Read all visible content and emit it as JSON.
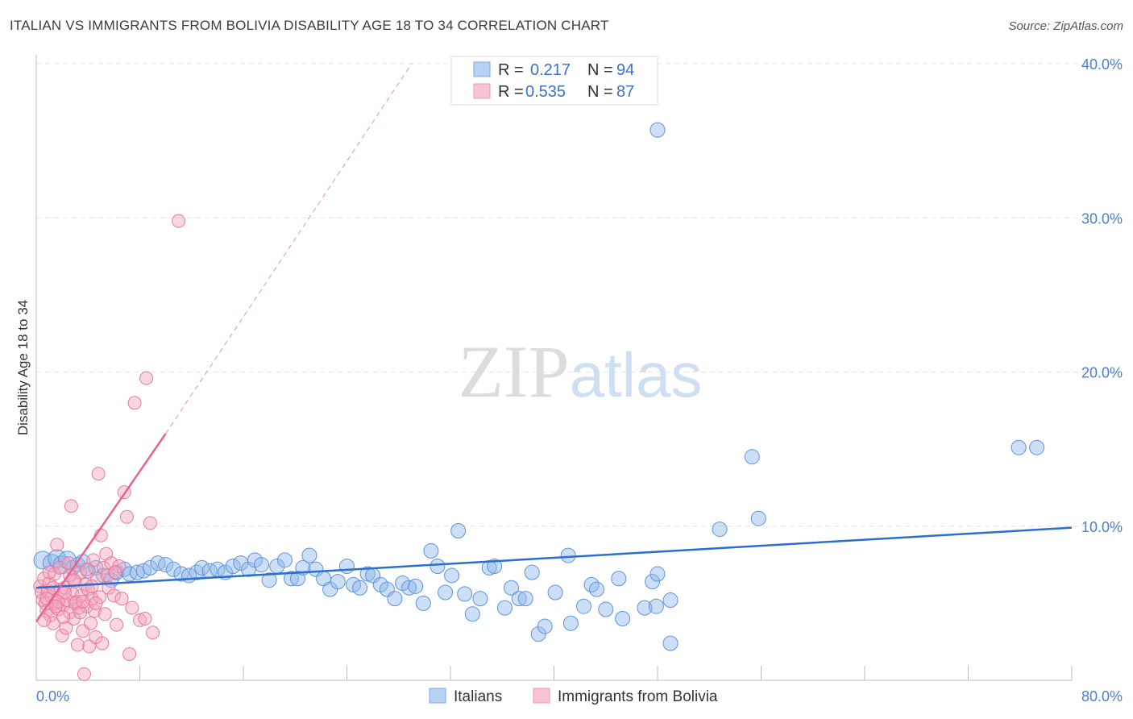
{
  "chart_data": {
    "type": "scatter",
    "title": "ITALIAN VS IMMIGRANTS FROM BOLIVIA DISABILITY AGE 18 TO 34 CORRELATION CHART",
    "source": "Source: ZipAtlas.com",
    "xlabel": "",
    "ylabel": "Disability Age 18 to 34",
    "xlim": [
      0,
      80
    ],
    "ylim": [
      0,
      40
    ],
    "x_tick_labels": [
      "0.0%",
      "80.0%"
    ],
    "y_ticks": [
      10,
      20,
      30,
      40
    ],
    "y_tick_labels": [
      "10.0%",
      "20.0%",
      "30.0%",
      "40.0%"
    ],
    "watermark": "ZIPatlas",
    "legend": [
      {
        "name": "Italians",
        "r_label": "R =",
        "r": "0.217",
        "n_label": "N =",
        "n": "94",
        "color": "#8fb8ec"
      },
      {
        "name": "Immigrants from Bolivia",
        "r_label": "R =",
        "r": "0.535",
        "n_label": "N =",
        "n": "87",
        "color": "#f4a3bd"
      }
    ],
    "series": [
      {
        "name": "Italians",
        "color": "#8fb8ec",
        "stroke": "#5f93dc",
        "trend": {
          "x": [
            0,
            80
          ],
          "y": [
            6.0,
            9.9
          ],
          "color": "#2a6fcf"
        },
        "points": [
          [
            0.5,
            7.8
          ],
          [
            1.2,
            7.6
          ],
          [
            1.6,
            7.9
          ],
          [
            2.0,
            7.5
          ],
          [
            2.4,
            7.8
          ],
          [
            2.8,
            7.3
          ],
          [
            3.2,
            7.5
          ],
          [
            3.6,
            7.7
          ],
          [
            4.0,
            7.1
          ],
          [
            4.6,
            7.3
          ],
          [
            5.2,
            6.8
          ],
          [
            5.8,
            6.5
          ],
          [
            6.2,
            7.0
          ],
          [
            6.8,
            7.2
          ],
          [
            7.2,
            6.9
          ],
          [
            7.8,
            7.0
          ],
          [
            8.3,
            7.1
          ],
          [
            8.8,
            7.3
          ],
          [
            9.4,
            7.6
          ],
          [
            10.0,
            7.5
          ],
          [
            10.6,
            7.2
          ],
          [
            11.2,
            6.9
          ],
          [
            11.8,
            6.8
          ],
          [
            12.4,
            7.0
          ],
          [
            12.8,
            7.3
          ],
          [
            13.4,
            7.1
          ],
          [
            14.0,
            7.2
          ],
          [
            14.6,
            7.0
          ],
          [
            15.2,
            7.4
          ],
          [
            15.8,
            7.6
          ],
          [
            16.4,
            7.2
          ],
          [
            16.9,
            7.8
          ],
          [
            17.4,
            7.5
          ],
          [
            18.0,
            6.5
          ],
          [
            18.6,
            7.4
          ],
          [
            19.2,
            7.8
          ],
          [
            19.7,
            6.6
          ],
          [
            20.2,
            6.6
          ],
          [
            20.6,
            7.3
          ],
          [
            21.1,
            8.1
          ],
          [
            21.6,
            7.2
          ],
          [
            22.2,
            6.6
          ],
          [
            22.7,
            5.9
          ],
          [
            23.3,
            6.4
          ],
          [
            24.0,
            7.4
          ],
          [
            24.5,
            6.2
          ],
          [
            25.0,
            6.0
          ],
          [
            25.6,
            6.9
          ],
          [
            26.0,
            6.8
          ],
          [
            26.6,
            6.2
          ],
          [
            27.1,
            5.9
          ],
          [
            27.7,
            5.3
          ],
          [
            28.3,
            6.3
          ],
          [
            28.8,
            6.0
          ],
          [
            29.3,
            6.1
          ],
          [
            29.9,
            5.0
          ],
          [
            30.5,
            8.4
          ],
          [
            31.0,
            7.4
          ],
          [
            31.6,
            5.7
          ],
          [
            32.1,
            6.8
          ],
          [
            32.6,
            9.7
          ],
          [
            33.1,
            5.6
          ],
          [
            33.7,
            4.3
          ],
          [
            34.3,
            5.3
          ],
          [
            35.0,
            7.3
          ],
          [
            35.4,
            7.4
          ],
          [
            36.2,
            4.7
          ],
          [
            36.7,
            6.0
          ],
          [
            37.3,
            5.3
          ],
          [
            37.8,
            5.3
          ],
          [
            38.3,
            7.0
          ],
          [
            38.8,
            3.0
          ],
          [
            39.3,
            3.5
          ],
          [
            40.1,
            5.7
          ],
          [
            41.1,
            8.1
          ],
          [
            41.3,
            3.7
          ],
          [
            42.3,
            4.8
          ],
          [
            42.9,
            6.2
          ],
          [
            43.3,
            5.9
          ],
          [
            44.0,
            4.6
          ],
          [
            45.0,
            6.6
          ],
          [
            45.3,
            4.0
          ],
          [
            47.0,
            4.7
          ],
          [
            47.6,
            6.4
          ],
          [
            47.9,
            4.8
          ],
          [
            48.0,
            6.9
          ],
          [
            49.0,
            5.2
          ],
          [
            49.0,
            2.4
          ],
          [
            48.0,
            35.7
          ],
          [
            52.8,
            9.8
          ],
          [
            55.8,
            10.5
          ],
          [
            55.3,
            14.5
          ],
          [
            75.9,
            15.1
          ],
          [
            77.3,
            15.1
          ]
        ]
      },
      {
        "name": "Immigrants from Bolivia",
        "color": "#f4a3bd",
        "stroke": "#e77a9e",
        "trend": {
          "x": [
            0,
            10
          ],
          "y": [
            3.8,
            16.0
          ],
          "color": "#e8638f"
        },
        "trend_ext": {
          "x": [
            10,
            29
          ],
          "y": [
            16.0,
            40.0
          ]
        },
        "points": [
          [
            0.3,
            6.1
          ],
          [
            0.4,
            5.7
          ],
          [
            0.5,
            5.2
          ],
          [
            0.6,
            6.6
          ],
          [
            0.7,
            5.0
          ],
          [
            0.8,
            4.5
          ],
          [
            0.9,
            5.8
          ],
          [
            1.0,
            6.3
          ],
          [
            1.1,
            4.2
          ],
          [
            1.2,
            5.4
          ],
          [
            1.3,
            3.7
          ],
          [
            1.4,
            6.9
          ],
          [
            1.5,
            5.0
          ],
          [
            1.6,
            8.8
          ],
          [
            1.7,
            4.6
          ],
          [
            1.8,
            7.3
          ],
          [
            1.9,
            5.9
          ],
          [
            2.0,
            2.9
          ],
          [
            2.1,
            4.9
          ],
          [
            2.2,
            6.0
          ],
          [
            2.3,
            3.4
          ],
          [
            2.4,
            5.2
          ],
          [
            2.5,
            7.6
          ],
          [
            2.6,
            4.4
          ],
          [
            2.7,
            11.3
          ],
          [
            2.8,
            5.6
          ],
          [
            2.9,
            4.0
          ],
          [
            3.0,
            6.4
          ],
          [
            3.1,
            5.1
          ],
          [
            3.2,
            2.3
          ],
          [
            3.3,
            4.7
          ],
          [
            3.4,
            7.0
          ],
          [
            3.5,
            5.5
          ],
          [
            3.6,
            3.2
          ],
          [
            3.7,
            0.4
          ],
          [
            3.8,
            6.2
          ],
          [
            3.9,
            4.8
          ],
          [
            4.0,
            5.9
          ],
          [
            4.1,
            2.2
          ],
          [
            4.2,
            3.7
          ],
          [
            4.3,
            5.3
          ],
          [
            4.4,
            7.8
          ],
          [
            4.5,
            4.5
          ],
          [
            4.6,
            2.8
          ],
          [
            4.7,
            6.6
          ],
          [
            4.8,
            13.4
          ],
          [
            4.9,
            5.4
          ],
          [
            5.0,
            9.4
          ],
          [
            5.1,
            2.4
          ],
          [
            5.2,
            7.3
          ],
          [
            5.3,
            4.3
          ],
          [
            5.4,
            8.2
          ],
          [
            5.6,
            6.0
          ],
          [
            5.8,
            7.6
          ],
          [
            6.0,
            5.5
          ],
          [
            6.2,
            3.6
          ],
          [
            6.4,
            7.4
          ],
          [
            6.6,
            5.3
          ],
          [
            6.8,
            12.2
          ],
          [
            7.0,
            10.6
          ],
          [
            7.2,
            1.7
          ],
          [
            7.4,
            4.7
          ],
          [
            7.6,
            18.0
          ],
          [
            8.0,
            3.9
          ],
          [
            8.5,
            19.6
          ],
          [
            8.4,
            4.0
          ],
          [
            8.8,
            10.2
          ],
          [
            9.0,
            3.1
          ],
          [
            11.0,
            29.8
          ],
          [
            0.6,
            3.9
          ],
          [
            1.0,
            7.0
          ],
          [
            1.3,
            6.0
          ],
          [
            1.7,
            5.1
          ],
          [
            2.1,
            4.1
          ],
          [
            2.6,
            6.8
          ],
          [
            3.0,
            5.0
          ],
          [
            3.4,
            4.4
          ],
          [
            3.9,
            7.2
          ],
          [
            4.3,
            6.1
          ],
          [
            0.8,
            5.3
          ],
          [
            1.5,
            4.8
          ],
          [
            2.2,
            5.7
          ],
          [
            2.9,
            6.5
          ],
          [
            3.6,
            5.1
          ],
          [
            4.6,
            5.0
          ],
          [
            5.5,
            6.8
          ],
          [
            6.1,
            7.0
          ]
        ]
      }
    ]
  }
}
